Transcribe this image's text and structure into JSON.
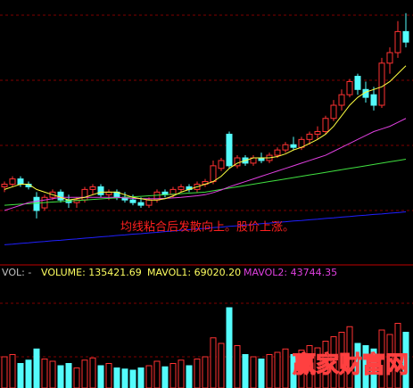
{
  "chart_data": {
    "type": "candlestick",
    "annotation": "均线粘合后发散向上。股价上涨。",
    "watermark": "赢家财富网",
    "up_color": "#ff3232",
    "down_color": "#54fcfc",
    "ylim": [
      0,
      100
    ],
    "open": [
      29,
      30,
      32,
      30,
      25,
      21,
      25,
      27,
      24,
      23,
      24,
      28,
      29,
      26,
      27,
      25,
      24,
      23,
      22,
      24,
      27,
      26,
      28,
      29,
      28,
      30,
      31,
      36,
      49,
      37,
      40,
      38,
      40,
      39,
      41,
      43,
      45,
      44,
      47,
      49,
      50,
      55,
      60,
      64,
      71,
      66,
      64,
      60,
      76,
      80,
      88
    ],
    "high": [
      31,
      33,
      33,
      31,
      27,
      26,
      28,
      28,
      26,
      25,
      29,
      30,
      30,
      28,
      28,
      27,
      26,
      25,
      25,
      28,
      28,
      29,
      30,
      30,
      31,
      32,
      39,
      40,
      50,
      41,
      41,
      41,
      42,
      42,
      44,
      46,
      48,
      48,
      50,
      52,
      56,
      62,
      66,
      70,
      72,
      69,
      67,
      78,
      82,
      92,
      95
    ],
    "low": [
      27,
      29,
      29,
      28,
      17,
      20,
      24,
      23,
      21,
      21,
      23,
      26,
      25,
      24,
      24,
      23,
      22,
      21,
      21,
      23,
      25,
      25,
      27,
      27,
      27,
      29,
      30,
      35,
      36,
      36,
      37,
      37,
      38,
      38,
      40,
      42,
      43,
      43,
      45,
      47,
      49,
      54,
      58,
      63,
      64,
      61,
      58,
      59,
      72,
      78,
      82
    ],
    "close": [
      30,
      32,
      30,
      29,
      20,
      25,
      27,
      24,
      23,
      24,
      28,
      29,
      26,
      27,
      25,
      24,
      23,
      22,
      24,
      27,
      26,
      28,
      29,
      28,
      30,
      31,
      37,
      39,
      37,
      40,
      38,
      40,
      39,
      41,
      43,
      45,
      44,
      47,
      49,
      50,
      55,
      60,
      64,
      69,
      66,
      63,
      60,
      76,
      80,
      88,
      84
    ],
    "lines": [
      {
        "color": "#2020ff",
        "values": [
          7,
          7.2,
          7.5,
          7.7,
          8,
          8.2,
          8.5,
          8.7,
          9,
          9.2,
          9.5,
          9.7,
          10,
          10.2,
          10.5,
          10.7,
          11,
          11.2,
          11.5,
          11.7,
          12,
          12.2,
          12.5,
          12.7,
          13,
          13.2,
          13.5,
          13.7,
          14,
          14.2,
          14.5,
          14.7,
          15,
          15.2,
          15.5,
          15.7,
          16,
          16.2,
          16.5,
          16.7,
          17,
          17.2,
          17.5,
          17.7,
          18,
          18.2,
          18.5,
          18.7,
          19,
          19.2,
          19.5
        ]
      },
      {
        "color": "#40e040",
        "values": [
          22,
          22.2,
          22.4,
          22.6,
          22.8,
          23,
          23.2,
          23.4,
          23.6,
          23.8,
          24,
          24.2,
          24.4,
          24.6,
          24.8,
          25,
          25.2,
          25.4,
          25.6,
          25.8,
          26,
          26.2,
          26.4,
          26.6,
          26.8,
          27,
          27.5,
          28,
          28.5,
          29,
          29.5,
          30,
          30.5,
          31,
          31.5,
          32,
          32.5,
          33,
          33.5,
          34,
          34.5,
          35,
          35.5,
          36,
          36.5,
          37,
          37.5,
          38,
          38.5,
          39,
          39.5
        ]
      },
      {
        "color": "#e040e0",
        "values": [
          20,
          21,
          22,
          23,
          23.5,
          24,
          24.5,
          25,
          25,
          25,
          25,
          25,
          25,
          25,
          25,
          24.8,
          24.6,
          24.5,
          24.5,
          24.5,
          24.6,
          24.8,
          25,
          25.3,
          25.6,
          26,
          26.8,
          27.8,
          29,
          30,
          31,
          32,
          33,
          34,
          35,
          36,
          37,
          38,
          39,
          40,
          41,
          42.5,
          44,
          45.5,
          47,
          48.5,
          50,
          51,
          52,
          53.5,
          55
        ]
      },
      {
        "color": "#ffff40",
        "values": [
          28,
          29,
          30,
          30,
          28,
          27,
          26,
          25,
          24,
          24.5,
          25,
          26,
          27,
          27,
          27,
          26,
          25,
          24.5,
          24,
          24,
          24.5,
          25.5,
          27,
          28,
          29,
          30,
          31,
          33,
          36,
          38,
          39,
          40,
          40,
          40,
          40.5,
          41.5,
          43,
          44,
          45.5,
          47,
          49,
          52,
          56,
          60,
          63,
          65,
          66,
          67,
          69,
          72,
          75
        ]
      }
    ],
    "volume": {
      "label": "VOL: -",
      "volume_text": "VOLUME: 135421.69",
      "mavol1_text": "MAVOL1: 69020.20",
      "mavol2_text": "MAVOL2: 43744.35",
      "ylim": [
        0,
        100
      ],
      "values": [
        28,
        30,
        22,
        25,
        35,
        26,
        24,
        20,
        22,
        18,
        25,
        27,
        20,
        22,
        18,
        17,
        16,
        18,
        20,
        24,
        19,
        22,
        25,
        20,
        26,
        28,
        45,
        40,
        72,
        38,
        30,
        28,
        26,
        30,
        32,
        35,
        30,
        34,
        38,
        36,
        42,
        46,
        50,
        55,
        40,
        38,
        35,
        52,
        48,
        58,
        50
      ]
    }
  }
}
